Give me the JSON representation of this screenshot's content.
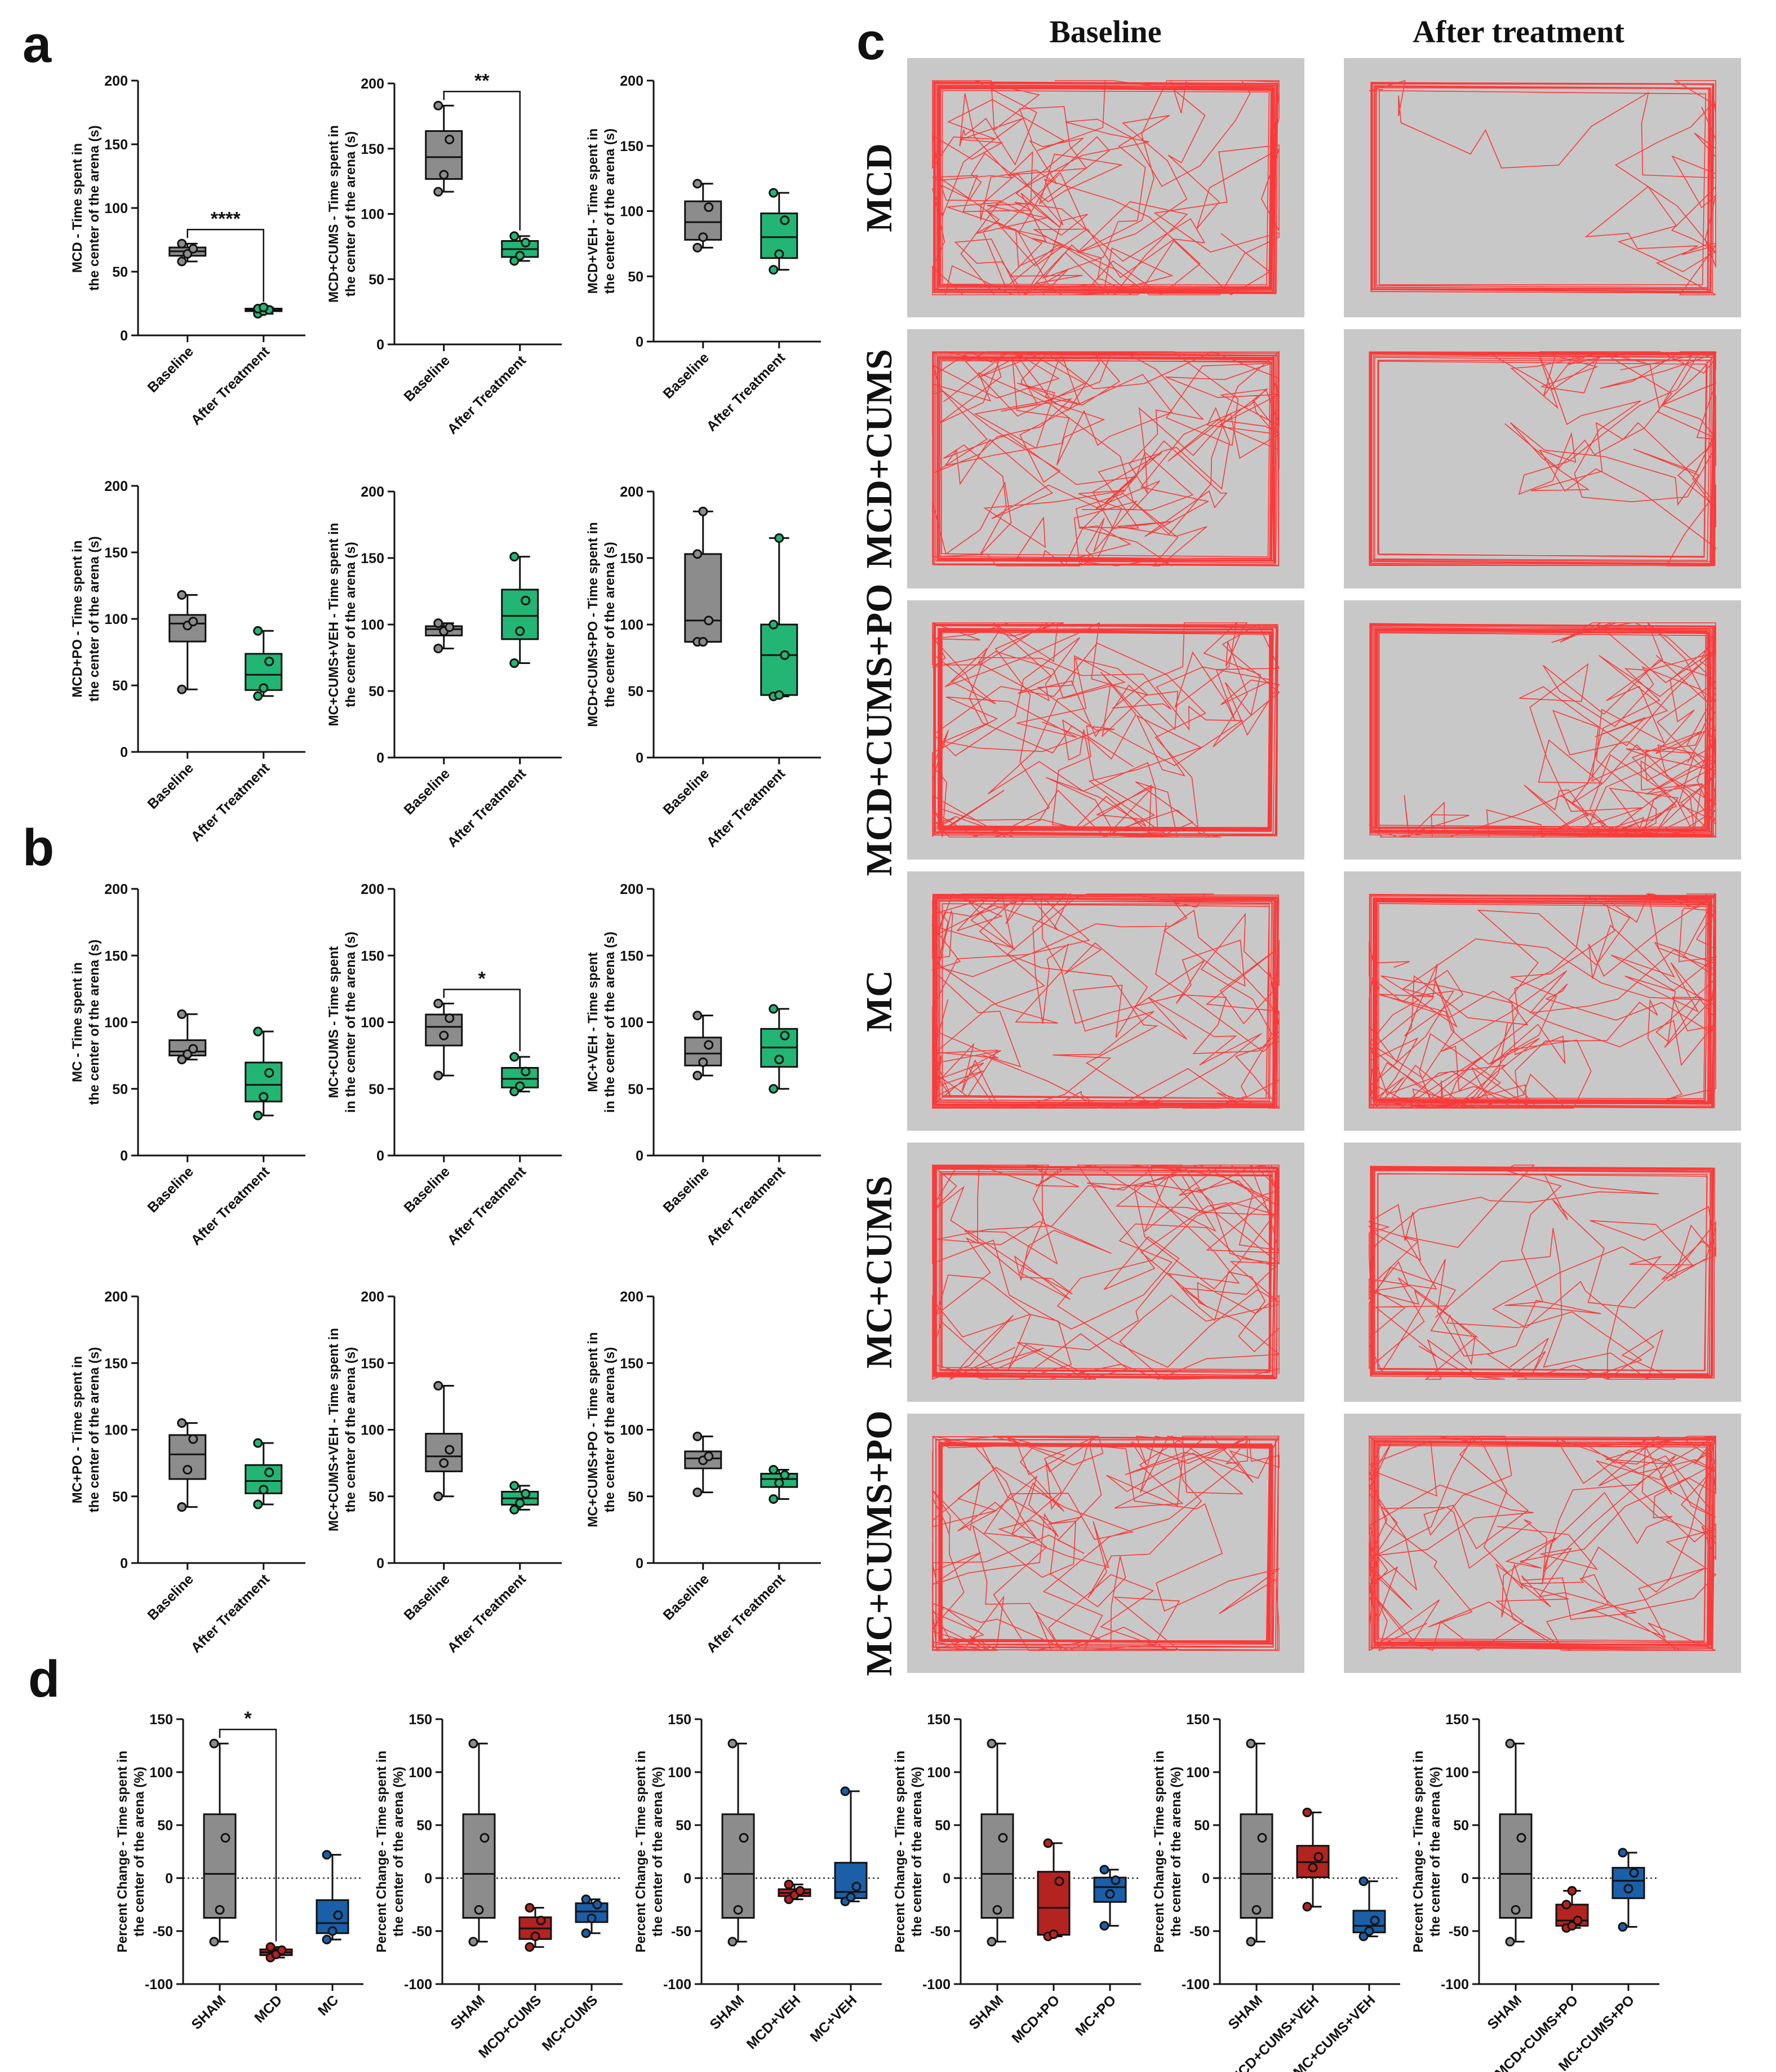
{
  "panels": {
    "a": "a",
    "b": "b",
    "c": "c",
    "d": "d"
  },
  "colors": {
    "baseline": "#8c8c8c",
    "after": "#22b573",
    "sham": "#8c8c8c",
    "mcd": "#b3231f",
    "mc": "#1a5fa8",
    "track": "#ff2a2a",
    "arena_bg": "#c8c8c8"
  },
  "panel_c": {
    "columns": [
      "Baseline",
      "After treatment"
    ],
    "rows": [
      "MCD",
      "MCD+CUMS",
      "MCD+CUMS+PO",
      "MC",
      "MC+CUMS",
      "MC+CUMS+PO"
    ],
    "track_density": [
      [
        0.95,
        0.25
      ],
      [
        0.9,
        0.45
      ],
      [
        0.95,
        0.95
      ],
      [
        0.9,
        0.95
      ],
      [
        0.9,
        0.55
      ],
      [
        0.9,
        0.9
      ]
    ]
  },
  "chart_data": [
    {
      "id": "a1",
      "type": "box",
      "ylabel": [
        "MCD - Time spent in",
        "the center of the arena (s)"
      ],
      "categories": [
        "Baseline",
        "After Treatment"
      ],
      "ylim": [
        0,
        200
      ],
      "yticks": [
        0,
        50,
        100,
        150,
        200
      ],
      "series": [
        {
          "values": [
            58,
            64,
            68,
            72
          ]
        },
        {
          "values": [
            17,
            19,
            20,
            21,
            22
          ]
        }
      ],
      "sig": "****"
    },
    {
      "id": "a2",
      "type": "box",
      "ylabel": [
        "MCD+CUMS - Time spent in",
        "the center of the arena (s)"
      ],
      "categories": [
        "Baseline",
        "After Treatment"
      ],
      "ylim": [
        0,
        200
      ],
      "yticks": [
        0,
        50,
        100,
        150,
        200
      ],
      "series": [
        {
          "values": [
            117,
            130,
            157,
            183
          ]
        },
        {
          "values": [
            64,
            68,
            78,
            83
          ]
        }
      ],
      "sig": "**"
    },
    {
      "id": "a3",
      "type": "box",
      "ylabel": [
        "MCD+VEH - Time spent in",
        "the center of the arena (s)"
      ],
      "categories": [
        "Baseline",
        "After Treatment"
      ],
      "ylim": [
        0,
        200
      ],
      "yticks": [
        0,
        50,
        100,
        150,
        200
      ],
      "series": [
        {
          "values": [
            72,
            80,
            103,
            121
          ]
        },
        {
          "values": [
            55,
            67,
            93,
            114
          ]
        }
      ],
      "sig": ""
    },
    {
      "id": "a4",
      "type": "box",
      "ylabel": [
        "MCD+PO - Time spent in",
        "the center of the arena (s)"
      ],
      "categories": [
        "Baseline",
        "After Treatment"
      ],
      "ylim": [
        0,
        200
      ],
      "yticks": [
        0,
        50,
        100,
        150,
        200
      ],
      "series": [
        {
          "values": [
            47,
            95,
            98,
            118
          ]
        },
        {
          "values": [
            42,
            48,
            68,
            91
          ]
        }
      ],
      "sig": ""
    },
    {
      "id": "a5",
      "type": "box",
      "ylabel": [
        "MC+CUMS+VEH - Time spent in",
        "the center of the arena (s)"
      ],
      "categories": [
        "Baseline",
        "After Treatment"
      ],
      "ylim": [
        0,
        200
      ],
      "yticks": [
        0,
        50,
        100,
        150,
        200
      ],
      "series": [
        {
          "values": [
            82,
            95,
            98,
            101
          ]
        },
        {
          "values": [
            71,
            95,
            118,
            151
          ]
        }
      ],
      "sig": ""
    },
    {
      "id": "a6",
      "type": "box",
      "ylabel": [
        "MCD+CUMS+PO - Time spent in",
        "the center of the arena (s)"
      ],
      "categories": [
        "Baseline",
        "After Treatment"
      ],
      "ylim": [
        0,
        200
      ],
      "yticks": [
        0,
        50,
        100,
        150,
        200
      ],
      "series": [
        {
          "values": [
            87,
            87,
            103,
            153,
            185
          ]
        },
        {
          "values": [
            46,
            47,
            77,
            100,
            165
          ]
        }
      ],
      "sig": ""
    },
    {
      "id": "b1",
      "type": "box",
      "ylabel": [
        "MC - Time spent in",
        "the center of the arena (s)"
      ],
      "categories": [
        "Baseline",
        "After Treatment"
      ],
      "ylim": [
        0,
        200
      ],
      "yticks": [
        0,
        50,
        100,
        150,
        200
      ],
      "series": [
        {
          "values": [
            72,
            76,
            80,
            106
          ]
        },
        {
          "values": [
            30,
            44,
            62,
            93
          ]
        }
      ],
      "sig": ""
    },
    {
      "id": "b2",
      "type": "box",
      "ylabel": [
        "MC+CUMS - Time spent",
        "in the center of the arena (s)"
      ],
      "categories": [
        "Baseline",
        "After Treatment"
      ],
      "ylim": [
        0,
        200
      ],
      "yticks": [
        0,
        50,
        100,
        150,
        200
      ],
      "series": [
        {
          "values": [
            60,
            90,
            103,
            114
          ]
        },
        {
          "values": [
            48,
            52,
            63,
            74
          ]
        }
      ],
      "sig": "*"
    },
    {
      "id": "b3",
      "type": "box",
      "ylabel": [
        "MC+VEH - Time spent",
        "in the center of the arena (s)"
      ],
      "categories": [
        "Baseline",
        "After Treatment"
      ],
      "ylim": [
        0,
        200
      ],
      "yticks": [
        0,
        50,
        100,
        150,
        200
      ],
      "series": [
        {
          "values": [
            60,
            70,
            83,
            105
          ]
        },
        {
          "values": [
            50,
            72,
            90,
            110
          ]
        }
      ],
      "sig": ""
    },
    {
      "id": "b4",
      "type": "box",
      "ylabel": [
        "MC+PO - Time spent in",
        "the center of the arena (s)"
      ],
      "categories": [
        "Baseline",
        "After Treatment"
      ],
      "ylim": [
        0,
        200
      ],
      "yticks": [
        0,
        50,
        100,
        150,
        200
      ],
      "series": [
        {
          "values": [
            42,
            70,
            93,
            105
          ]
        },
        {
          "values": [
            44,
            55,
            68,
            90
          ]
        }
      ],
      "sig": ""
    },
    {
      "id": "b5",
      "type": "box",
      "ylabel": [
        "MC+CUMS+VEH - Time spent in",
        "the center of the arena (s)"
      ],
      "categories": [
        "Baseline",
        "After Treatment"
      ],
      "ylim": [
        0,
        200
      ],
      "yticks": [
        0,
        50,
        100,
        150,
        200
      ],
      "series": [
        {
          "values": [
            50,
            75,
            85,
            133
          ]
        },
        {
          "values": [
            40,
            45,
            52,
            58
          ]
        }
      ],
      "sig": ""
    },
    {
      "id": "b6",
      "type": "box",
      "ylabel": [
        "MC+CUMS+PO - Time spent in",
        "the center of the arena (s)"
      ],
      "categories": [
        "Baseline",
        "After Treatment"
      ],
      "ylim": [
        0,
        200
      ],
      "yticks": [
        0,
        50,
        100,
        150,
        200
      ],
      "series": [
        {
          "values": [
            53,
            77,
            80,
            95
          ]
        },
        {
          "values": [
            48,
            60,
            66,
            70
          ]
        }
      ],
      "sig": ""
    },
    {
      "id": "d1",
      "type": "box",
      "ylabel": [
        "Percent Change - Time spent in",
        "the center of the arena (%)"
      ],
      "categories": [
        "SHAM",
        "MCD",
        "MC"
      ],
      "ylim": [
        -100,
        150
      ],
      "yticks": [
        -100,
        -50,
        0,
        50,
        100,
        150
      ],
      "series": [
        {
          "values": [
            -60,
            -30,
            38,
            127
          ]
        },
        {
          "values": [
            -75,
            -72,
            -68,
            -65
          ]
        },
        {
          "values": [
            -58,
            -50,
            -35,
            22
          ]
        }
      ],
      "sig": "*"
    },
    {
      "id": "d2",
      "type": "box",
      "ylabel": [
        "Percent Change - Time spent in",
        "the center of the arena (%)"
      ],
      "categories": [
        "SHAM",
        "MCD+CUMS",
        "MC+CUMS"
      ],
      "ylim": [
        -100,
        150
      ],
      "yticks": [
        -100,
        -50,
        0,
        50,
        100,
        150
      ],
      "series": [
        {
          "values": [
            -60,
            -30,
            38,
            127
          ]
        },
        {
          "values": [
            -65,
            -55,
            -40,
            -28
          ]
        },
        {
          "values": [
            -52,
            -38,
            -25,
            -20
          ]
        }
      ],
      "sig": ""
    },
    {
      "id": "d3",
      "type": "box",
      "ylabel": [
        "Percent Change - Time spent in",
        "the center of the arena (%)"
      ],
      "categories": [
        "SHAM",
        "MCD+VEH",
        "MC+VEH"
      ],
      "ylim": [
        -100,
        150
      ],
      "yticks": [
        -100,
        -50,
        0,
        50,
        100,
        150
      ],
      "series": [
        {
          "values": [
            -60,
            -30,
            38,
            127
          ]
        },
        {
          "values": [
            -20,
            -16,
            -12,
            -6
          ]
        },
        {
          "values": [
            -22,
            -18,
            -8,
            82
          ]
        }
      ],
      "sig": ""
    },
    {
      "id": "d4",
      "type": "box",
      "ylabel": [
        "Percent Change - Time spent in",
        "the center of the arena (%)"
      ],
      "categories": [
        "SHAM",
        "MCD+PO",
        "MC+PO"
      ],
      "ylim": [
        -100,
        150
      ],
      "yticks": [
        -100,
        -50,
        0,
        50,
        100,
        150
      ],
      "series": [
        {
          "values": [
            -60,
            -30,
            38,
            127
          ]
        },
        {
          "values": [
            -55,
            -53,
            -3,
            33
          ]
        },
        {
          "values": [
            -45,
            -15,
            -2,
            8
          ]
        }
      ],
      "sig": ""
    },
    {
      "id": "d5",
      "type": "box",
      "ylabel": [
        "Percent Change - Time spent in",
        "the center of the arena (%)"
      ],
      "categories": [
        "SHAM",
        "MCD+CUMS+VEH",
        "MC+CUMS+VEH"
      ],
      "ylim": [
        -100,
        150
      ],
      "yticks": [
        -100,
        -50,
        0,
        50,
        100,
        150
      ],
      "series": [
        {
          "values": [
            -60,
            -30,
            38,
            127
          ]
        },
        {
          "values": [
            -27,
            10,
            20,
            62
          ]
        },
        {
          "values": [
            -55,
            -50,
            -40,
            -3
          ]
        }
      ],
      "sig": ""
    },
    {
      "id": "d6",
      "type": "box",
      "ylabel": [
        "Percent Change - Time spent in",
        "the center of the arena (%)"
      ],
      "categories": [
        "SHAM",
        "MCD+CUMS+PO",
        "MC+CUMS+PO"
      ],
      "ylim": [
        -100,
        150
      ],
      "yticks": [
        -100,
        -50,
        0,
        50,
        100,
        150
      ],
      "series": [
        {
          "values": [
            -60,
            -30,
            38,
            127
          ]
        },
        {
          "values": [
            -47,
            -45,
            -40,
            -25,
            -12
          ]
        },
        {
          "values": [
            -46,
            -10,
            5,
            24
          ]
        }
      ],
      "sig": ""
    }
  ]
}
